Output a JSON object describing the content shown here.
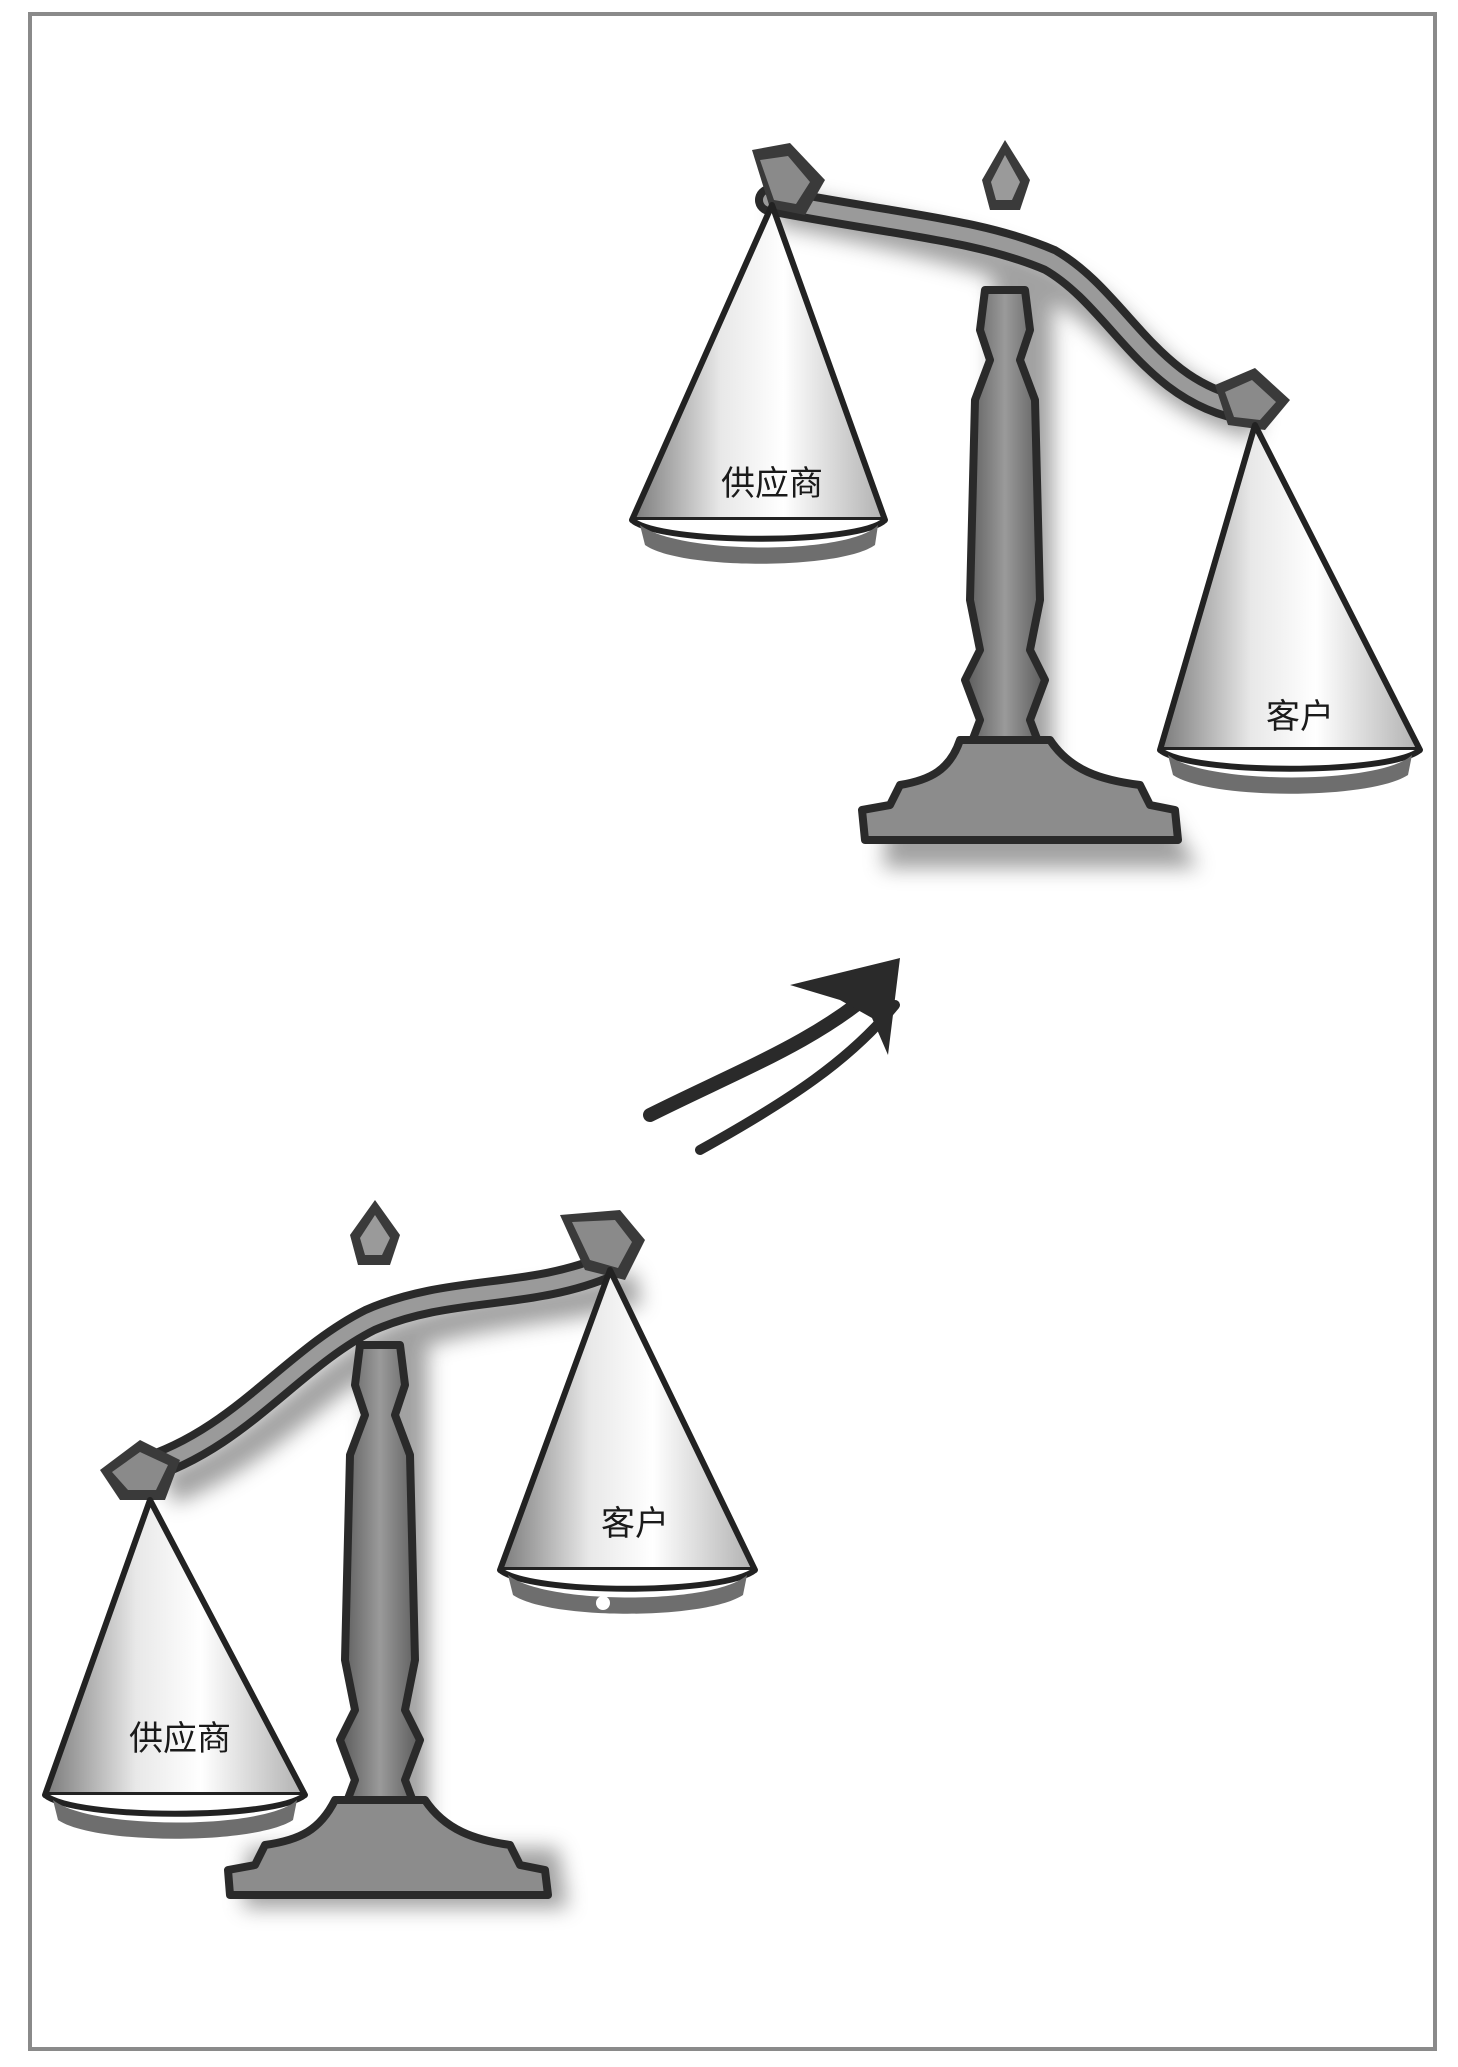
{
  "diagram": {
    "scale_before": {
      "left_pan_label": "供应商",
      "right_pan_label": "客户"
    },
    "scale_after": {
      "left_pan_label": "供应商",
      "right_pan_label": "客户"
    },
    "arrow": {
      "direction": "up-right",
      "icon": "double-arrow-icon"
    }
  }
}
